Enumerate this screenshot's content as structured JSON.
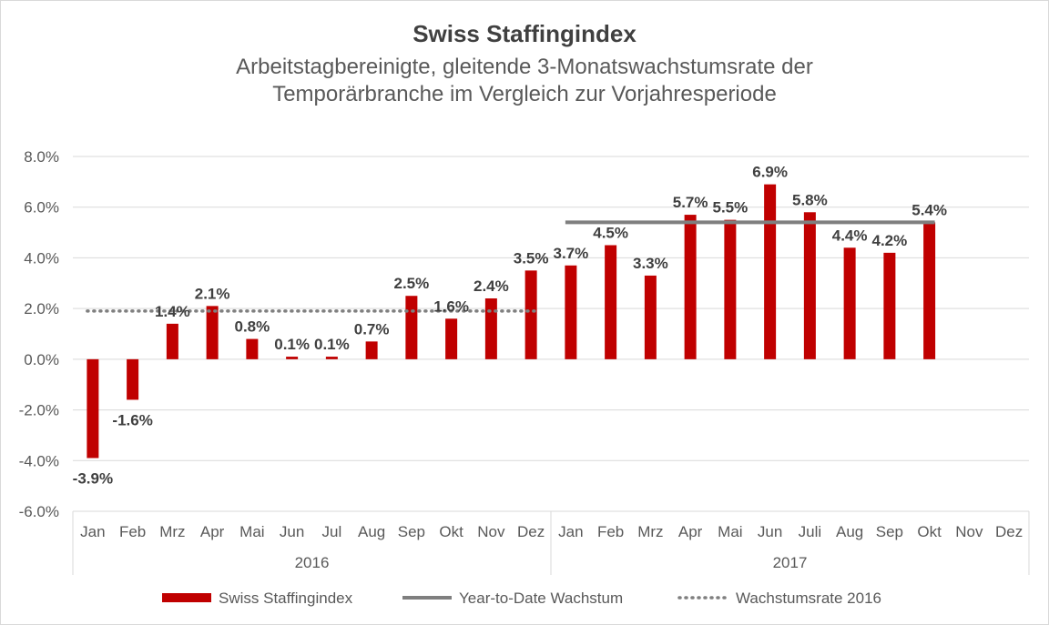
{
  "chart_data": {
    "type": "bar",
    "title": "Swiss Staffingindex",
    "subtitle_lines": [
      "Arbeitstagbereinigte, gleitende 3-Monatswachstumsrate der",
      "Temporärbranche im Vergleich zur Vorjahresperiode"
    ],
    "categories": [
      "Jan",
      "Feb",
      "Mrz",
      "Apr",
      "Mai",
      "Jun",
      "Jul",
      "Aug",
      "Sep",
      "Okt",
      "Nov",
      "Dez",
      "Jan",
      "Feb",
      "Mrz",
      "Apr",
      "Mai",
      "Jun",
      "Juli",
      "Aug",
      "Sep",
      "Okt",
      "Nov",
      "Dez"
    ],
    "groups": [
      {
        "label": "2016",
        "start": 0,
        "end": 11
      },
      {
        "label": "2017",
        "start": 12,
        "end": 23
      }
    ],
    "series": [
      {
        "name": "Swiss Staffingindex",
        "type": "bar",
        "color": "#c00000",
        "values": [
          -3.9,
          -1.6,
          1.4,
          2.1,
          0.8,
          0.1,
          0.1,
          0.7,
          2.5,
          1.6,
          2.4,
          3.5,
          3.7,
          4.5,
          3.3,
          5.7,
          5.5,
          6.9,
          5.8,
          4.4,
          4.2,
          5.4,
          null,
          null
        ],
        "labels": [
          "-3.9%",
          "-1.6%",
          "1.4%",
          "2.1%",
          "0.8%",
          "0.1%",
          "0.1%",
          "0.7%",
          "2.5%",
          "1.6%",
          "2.4%",
          "3.5%",
          "3.7%",
          "4.5%",
          "3.3%",
          "5.7%",
          "5.5%",
          "6.9%",
          "5.8%",
          "4.4%",
          "4.2%",
          "5.4%",
          "",
          ""
        ]
      },
      {
        "name": "Year-to-Date Wachstum",
        "type": "line",
        "style": "solid",
        "color": "#7f7f7f",
        "value": 5.4,
        "start": 12,
        "end": 21
      },
      {
        "name": "Wachstumsrate 2016",
        "type": "line",
        "style": "dotted",
        "color": "#7f7f7f",
        "value": 1.9,
        "start": 0,
        "end": 11
      }
    ],
    "ylim": [
      -6,
      8
    ],
    "yticks": [
      -6,
      -4,
      -2,
      0,
      2,
      4,
      6,
      8
    ],
    "ytick_labels": [
      "-6.0%",
      "-4.0%",
      "-2.0%",
      "0.0%",
      "2.0%",
      "4.0%",
      "6.0%",
      "8.0%"
    ],
    "grid": true,
    "legend": "bottom"
  }
}
